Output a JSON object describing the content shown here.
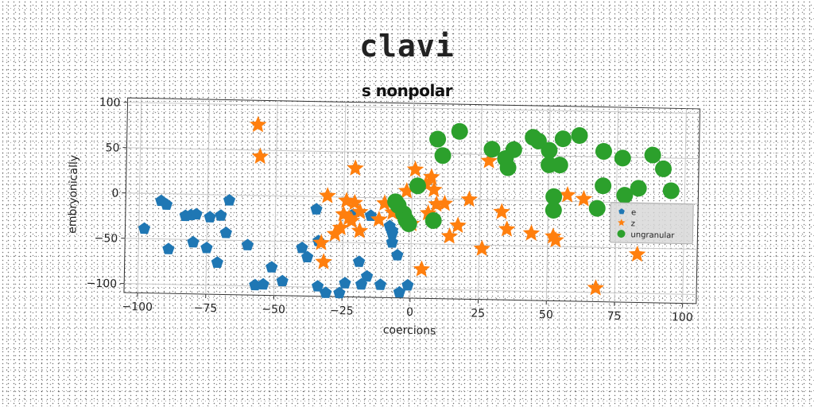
{
  "chart_data": {
    "type": "scatter",
    "title": "clavi",
    "subtitle": "s nonpolar",
    "xlabel": "coercions",
    "ylabel": "embryonically",
    "xlim": [
      -105,
      105
    ],
    "ylim": [
      -110,
      105
    ],
    "xticks": [
      -100,
      -75,
      -50,
      -25,
      0,
      25,
      50,
      75,
      100
    ],
    "yticks": [
      -100,
      -50,
      0,
      50,
      100
    ],
    "grid": true,
    "legend_position": "right",
    "series": [
      {
        "name": "e",
        "marker": "pentagon",
        "color": "#1f77b4",
        "points": [
          [
            -98,
            -39
          ],
          [
            -92,
            -8
          ],
          [
            -90,
            -12
          ],
          [
            -89,
            -61
          ],
          [
            -83,
            -24
          ],
          [
            -81,
            -23
          ],
          [
            -80,
            -53
          ],
          [
            -79,
            -22
          ],
          [
            -75,
            -59
          ],
          [
            -74,
            -25
          ],
          [
            -71,
            -75
          ],
          [
            -70,
            -23
          ],
          [
            -68,
            -42
          ],
          [
            -67,
            -6
          ],
          [
            -60,
            -55
          ],
          [
            -57,
            -99
          ],
          [
            -54,
            -98
          ],
          [
            -51,
            -79
          ],
          [
            -47,
            -94
          ],
          [
            -40,
            -57
          ],
          [
            -38,
            -67
          ],
          [
            -35,
            -14
          ],
          [
            -34,
            -49
          ],
          [
            -34,
            -99
          ],
          [
            -31,
            -106
          ],
          [
            -26,
            -106
          ],
          [
            -24,
            -95
          ],
          [
            -22,
            -20
          ],
          [
            -19,
            -71
          ],
          [
            -18,
            -96
          ],
          [
            -15,
            -20
          ],
          [
            -16,
            -87
          ],
          [
            -11,
            -96
          ],
          [
            -8,
            -31
          ],
          [
            -7,
            -39
          ],
          [
            -7,
            -49
          ],
          [
            -7,
            -36
          ],
          [
            -5,
            -63
          ],
          [
            -4,
            -104
          ],
          [
            -1,
            -96
          ]
        ]
      },
      {
        "name": "z",
        "marker": "star",
        "color": "#ff7f0e",
        "points": [
          [
            -57,
            78
          ],
          [
            -56,
            43
          ],
          [
            -33,
            -51
          ],
          [
            -32,
            -72
          ],
          [
            -31,
            1
          ],
          [
            -28,
            -41
          ],
          [
            -26,
            -34
          ],
          [
            -25,
            -19
          ],
          [
            -24,
            -4
          ],
          [
            -23,
            -23
          ],
          [
            -22,
            -26
          ],
          [
            -21,
            -6
          ],
          [
            -21,
            32
          ],
          [
            -19,
            -16
          ],
          [
            -19,
            -37
          ],
          [
            -12,
            -24
          ],
          [
            -10,
            -6
          ],
          [
            -7,
            -16
          ],
          [
            -2,
            8
          ],
          [
            0,
            -28
          ],
          [
            1,
            32
          ],
          [
            4,
            -78
          ],
          [
            5,
            16
          ],
          [
            6,
            -16
          ],
          [
            7,
            24
          ],
          [
            8,
            10
          ],
          [
            9,
            -6
          ],
          [
            12,
            -5
          ],
          [
            14,
            -41
          ],
          [
            17,
            -29
          ],
          [
            21,
            0
          ],
          [
            26,
            -54
          ],
          [
            28,
            43
          ],
          [
            33,
            -13
          ],
          [
            35,
            -32
          ],
          [
            44,
            -36
          ],
          [
            52,
            -39
          ],
          [
            53,
            -43
          ],
          [
            57,
            7
          ],
          [
            63,
            3
          ],
          [
            68,
            -95
          ],
          [
            83,
            -57
          ]
        ]
      },
      {
        "name": "ungranular",
        "marker": "circle",
        "color": "#2ca02c",
        "points": [
          [
            -6,
            -4
          ],
          [
            -5,
            -8
          ],
          [
            -3,
            -17
          ],
          [
            -2,
            -24
          ],
          [
            -1,
            -28
          ],
          [
            2,
            14
          ],
          [
            8,
            -24
          ],
          [
            9,
            66
          ],
          [
            11,
            48
          ],
          [
            17,
            75
          ],
          [
            29,
            56
          ],
          [
            34,
            46
          ],
          [
            35,
            36
          ],
          [
            37,
            56
          ],
          [
            44,
            70
          ],
          [
            46,
            66
          ],
          [
            50,
            40
          ],
          [
            50,
            56
          ],
          [
            52,
            -10
          ],
          [
            52,
            5
          ],
          [
            54,
            40
          ],
          [
            55,
            69
          ],
          [
            61,
            73
          ],
          [
            68,
            -7
          ],
          [
            70,
            18
          ],
          [
            70,
            56
          ],
          [
            77,
            49
          ],
          [
            78,
            8
          ],
          [
            83,
            16
          ],
          [
            88,
            53
          ],
          [
            92,
            38
          ],
          [
            95,
            14
          ]
        ]
      }
    ]
  }
}
